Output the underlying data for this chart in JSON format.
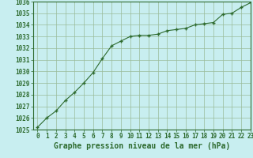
{
  "x": [
    0,
    1,
    2,
    3,
    4,
    5,
    6,
    7,
    8,
    9,
    10,
    11,
    12,
    13,
    14,
    15,
    16,
    17,
    18,
    19,
    20,
    21,
    22,
    23
  ],
  "y": [
    1025.2,
    1026.0,
    1026.6,
    1027.5,
    1028.2,
    1029.0,
    1029.9,
    1031.1,
    1032.2,
    1032.6,
    1033.0,
    1033.1,
    1033.1,
    1033.2,
    1033.5,
    1033.6,
    1033.7,
    1034.0,
    1034.1,
    1034.2,
    1034.9,
    1035.0,
    1035.5,
    1035.9
  ],
  "line_color": "#2d6a2d",
  "marker": "+",
  "bg_color": "#c8eef0",
  "grid_color": "#99bb99",
  "xlabel": "Graphe pression niveau de la mer (hPa)",
  "ylim": [
    1025,
    1036
  ],
  "xlim": [
    -0.5,
    23
  ],
  "yticks": [
    1025,
    1026,
    1027,
    1028,
    1029,
    1030,
    1031,
    1032,
    1033,
    1034,
    1035,
    1036
  ],
  "xticks": [
    0,
    1,
    2,
    3,
    4,
    5,
    6,
    7,
    8,
    9,
    10,
    11,
    12,
    13,
    14,
    15,
    16,
    17,
    18,
    19,
    20,
    21,
    22,
    23
  ],
  "tick_color": "#2d6a2d",
  "label_color": "#2d6a2d",
  "xlabel_fontsize": 7.0,
  "tick_fontsize": 5.5
}
